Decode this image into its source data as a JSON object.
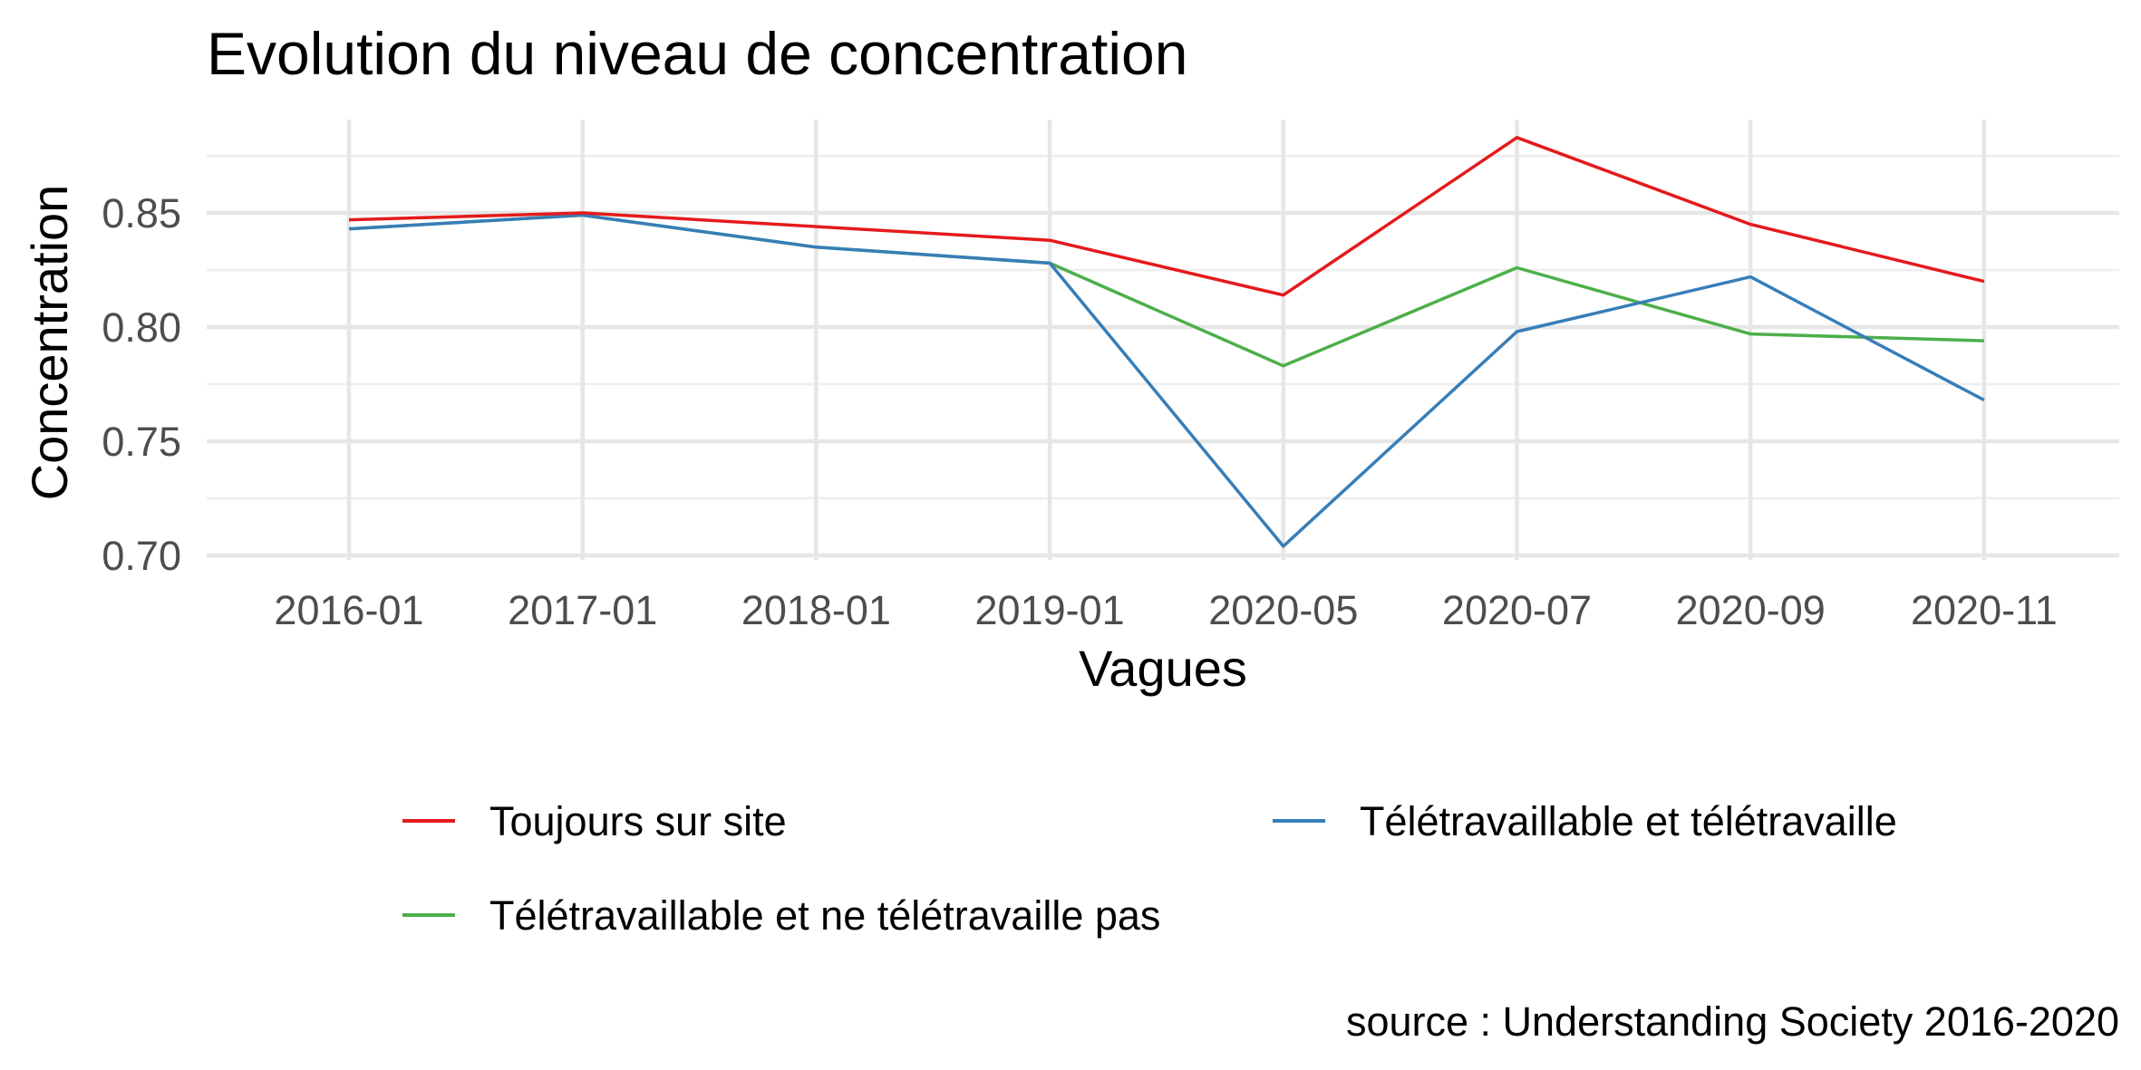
{
  "chart_data": {
    "type": "line",
    "title": "Evolution du niveau de concentration",
    "xlabel": "Vagues",
    "ylabel": "Concentration",
    "caption": "source : Understanding Society 2016-2020",
    "categories": [
      "2016-01",
      "2017-01",
      "2018-01",
      "2019-01",
      "2020-05",
      "2020-07",
      "2020-09",
      "2020-11"
    ],
    "ylim": [
      0.7,
      0.885
    ],
    "yticks": [
      0.7,
      0.75,
      0.8,
      0.85
    ],
    "ytick_labels": [
      "0.70",
      "0.75",
      "0.80",
      "0.85"
    ],
    "grid": true,
    "legend_position": "bottom",
    "series": [
      {
        "name": "Toujours sur site",
        "color": "#e41a1c",
        "values": [
          0.847,
          0.85,
          0.844,
          0.838,
          0.814,
          0.883,
          0.845,
          0.82
        ]
      },
      {
        "name": "Télétravaillable et télétravaille",
        "color": "#377eb8",
        "values": [
          0.843,
          0.849,
          0.835,
          0.828,
          0.704,
          0.798,
          0.822,
          0.768
        ]
      },
      {
        "name": "Télétravaillable et ne télétravaille pas",
        "color": "#4daf4a",
        "values": [
          0.843,
          0.849,
          0.835,
          0.828,
          0.783,
          0.826,
          0.797,
          0.794
        ]
      }
    ]
  }
}
